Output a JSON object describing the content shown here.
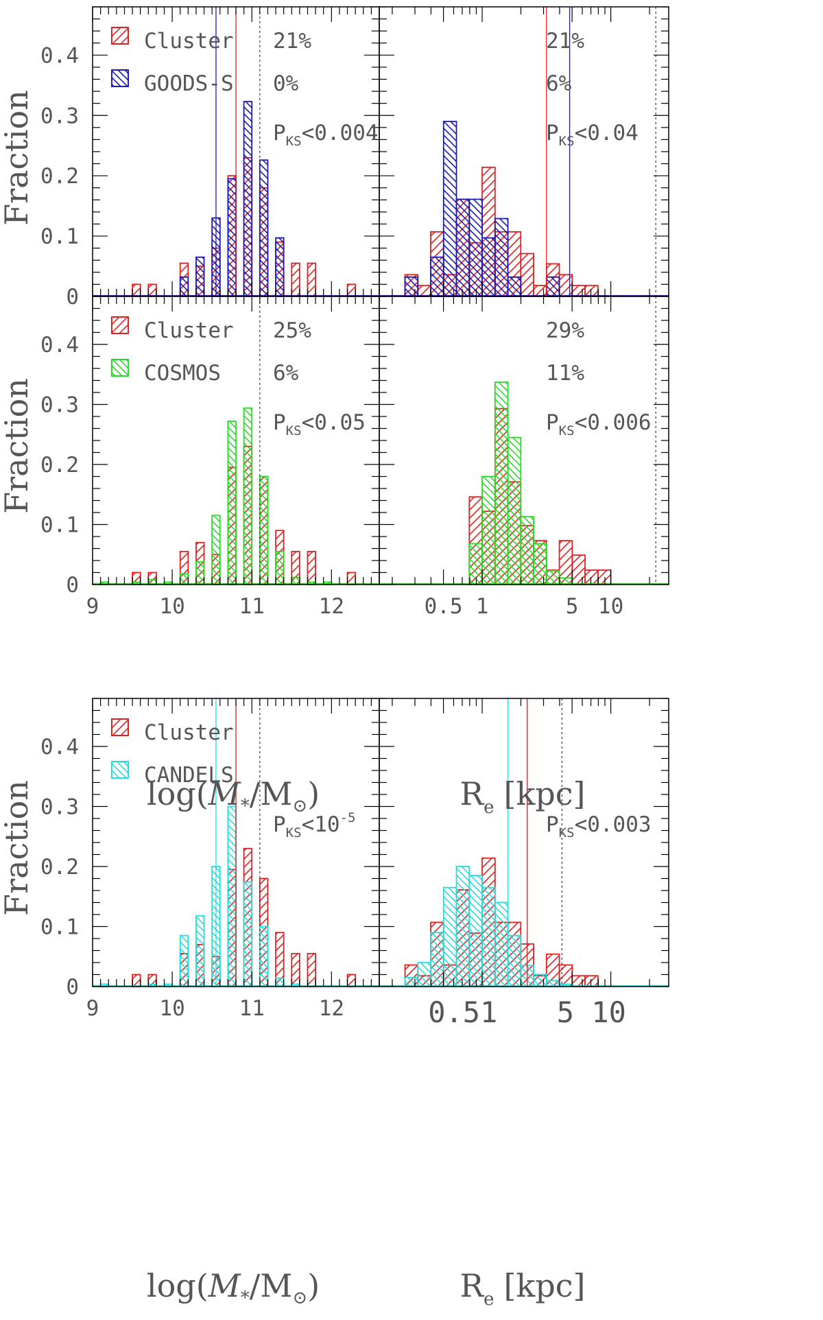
{
  "colors": {
    "cluster": "#dd2222",
    "goods_s": "#1a1ab8",
    "cosmos": "#22dd22",
    "candels": "#22dddd",
    "axis": "#000000",
    "text": "#555555"
  },
  "chart_data": [
    {
      "type": "histogram",
      "panel": "top-mass",
      "xlim": [
        9.0,
        12.6
      ],
      "ylim": [
        0,
        0.48
      ],
      "yticks": [
        0,
        0.1,
        0.2,
        0.3,
        0.4
      ],
      "xscale": "linear",
      "ylabel": "Fraction",
      "bin_edges": [
        9.0,
        9.1,
        9.2,
        9.3,
        9.4,
        9.5,
        9.6,
        9.7,
        9.8,
        9.9,
        10.0,
        10.1,
        10.2,
        10.3,
        10.4,
        10.5,
        10.6,
        10.7,
        10.8,
        10.9,
        11.0,
        11.1,
        11.2,
        11.3,
        11.4,
        11.5,
        11.6,
        11.7,
        11.8,
        11.9,
        12.0,
        12.1,
        12.2,
        12.3,
        12.4,
        12.5,
        12.6
      ],
      "series": [
        {
          "name": "Cluster",
          "color": "cluster",
          "hatch": "right",
          "values": [
            0,
            0,
            0,
            0,
            0,
            0.02,
            0,
            0.02,
            0,
            0,
            0,
            0.055,
            0,
            0.05,
            0,
            0.08,
            0,
            0.2,
            0,
            0.23,
            0,
            0.18,
            0,
            0.09,
            0,
            0.055,
            0,
            0.055,
            0,
            0,
            0,
            0,
            0.02,
            0,
            0,
            0
          ]
        },
        {
          "name": "GOODS-S",
          "color": "goods_s",
          "hatch": "left",
          "values": [
            0,
            0,
            0,
            0,
            0,
            0,
            0,
            0,
            0,
            0,
            0,
            0.032,
            0,
            0.065,
            0,
            0.13,
            0,
            0.195,
            0,
            0.323,
            0,
            0.226,
            0,
            0.097,
            0,
            0,
            0,
            0,
            0,
            0,
            0,
            0,
            0,
            0,
            0,
            0
          ]
        }
      ],
      "medians": [
        {
          "series": "Cluster",
          "x": 10.8
        },
        {
          "series": "GOODS-S",
          "x": 10.55
        }
      ],
      "threshold": 11.1,
      "legend": [
        {
          "label": "Cluster",
          "color": "cluster",
          "hatch": "right"
        },
        {
          "label": "GOODS-S",
          "color": "goods_s",
          "hatch": "left"
        }
      ],
      "annotations": {
        "pct1": "21%",
        "pct2": "0%",
        "pks_value": "<0.004"
      }
    },
    {
      "type": "histogram",
      "panel": "top-size",
      "xlim": [
        -0.8,
        1.45
      ],
      "ylim": [
        0,
        0.48
      ],
      "xscale": "log10_kpc",
      "bin_edges": [
        -0.7,
        -0.6,
        -0.5,
        -0.4,
        -0.3,
        -0.2,
        -0.1,
        0.0,
        0.1,
        0.2,
        0.3,
        0.4,
        0.5,
        0.6,
        0.7,
        0.8,
        0.9,
        1.0,
        1.1,
        1.2,
        1.3
      ],
      "series": [
        {
          "name": "Cluster",
          "color": "cluster",
          "hatch": "right",
          "values": [
            0,
            0.036,
            0.018,
            0.107,
            0.036,
            0.161,
            0.089,
            0.214,
            0.107,
            0.107,
            0.071,
            0.018,
            0.054,
            0.036,
            0.018,
            0.018,
            0,
            0,
            0,
            0
          ]
        },
        {
          "name": "GOODS-S",
          "color": "goods_s",
          "hatch": "left",
          "values": [
            0,
            0.032,
            0,
            0.065,
            0.29,
            0.161,
            0.161,
            0.097,
            0.129,
            0.032,
            0,
            0,
            0.032,
            0,
            0,
            0,
            0,
            0,
            0,
            0
          ]
        }
      ],
      "medians": [
        {
          "series": "Cluster",
          "x": 0.5
        },
        {
          "series": "GOODS-S",
          "x": 0.68
        }
      ],
      "threshold": 1.35,
      "annotations": {
        "pct1": "21%",
        "pct2": "6%",
        "pks_value": "<0.04"
      }
    },
    {
      "type": "histogram",
      "panel": "mid-mass",
      "xlim": [
        9.0,
        12.6
      ],
      "ylim": [
        0,
        0.48
      ],
      "yticks": [
        0,
        0.1,
        0.2,
        0.3,
        0.4
      ],
      "xscale": "linear",
      "ylabel": "Fraction",
      "xlabel": "log(M*/M☉)",
      "xticks": [
        9,
        10,
        11,
        12
      ],
      "bin_edges": [
        9.0,
        9.1,
        9.2,
        9.3,
        9.4,
        9.5,
        9.6,
        9.7,
        9.8,
        9.9,
        10.0,
        10.1,
        10.2,
        10.3,
        10.4,
        10.5,
        10.6,
        10.7,
        10.8,
        10.9,
        11.0,
        11.1,
        11.2,
        11.3,
        11.4,
        11.5,
        11.6,
        11.7,
        11.8,
        11.9,
        12.0,
        12.1,
        12.2,
        12.3,
        12.4,
        12.5,
        12.6
      ],
      "series": [
        {
          "name": "Cluster",
          "color": "cluster",
          "hatch": "right",
          "values": [
            0,
            0,
            0,
            0,
            0,
            0.02,
            0,
            0.02,
            0,
            0,
            0,
            0.055,
            0,
            0.07,
            0,
            0.05,
            0,
            0.195,
            0,
            0.23,
            0,
            0.18,
            0,
            0.09,
            0,
            0.055,
            0,
            0.055,
            0,
            0,
            0,
            0,
            0.02,
            0,
            0,
            0
          ]
        },
        {
          "name": "COSMOS",
          "color": "cosmos",
          "hatch": "left",
          "values": [
            0,
            0.004,
            0,
            0,
            0,
            0.004,
            0,
            0.008,
            0,
            0.004,
            0,
            0.018,
            0,
            0.038,
            0,
            0.115,
            0,
            0.272,
            0,
            0.294,
            0,
            0.18,
            0,
            0.055,
            0,
            0.012,
            0,
            0.004,
            0,
            0.004,
            0,
            0,
            0,
            0,
            0,
            0
          ]
        }
      ],
      "threshold": 11.1,
      "legend": [
        {
          "label": "Cluster",
          "color": "cluster",
          "hatch": "right"
        },
        {
          "label": "COSMOS",
          "color": "cosmos",
          "hatch": "left"
        }
      ],
      "annotations": {
        "pct1": "25%",
        "pct2": "6%",
        "pks_value": "<0.05"
      }
    },
    {
      "type": "histogram",
      "panel": "mid-size",
      "xlim": [
        -0.8,
        1.45
      ],
      "ylim": [
        0,
        0.48
      ],
      "xscale": "log10_kpc",
      "xlabel": "R_e [kpc]",
      "xticks": [
        "0.5",
        "1",
        "5",
        "10"
      ],
      "bin_edges": [
        -0.7,
        -0.6,
        -0.5,
        -0.4,
        -0.3,
        -0.2,
        -0.1,
        0.0,
        0.1,
        0.2,
        0.3,
        0.4,
        0.5,
        0.6,
        0.7,
        0.8,
        0.9,
        1.0,
        1.1,
        1.2,
        1.3
      ],
      "series": [
        {
          "name": "Cluster",
          "color": "cluster",
          "hatch": "right",
          "values": [
            0,
            0,
            0,
            0,
            0,
            0,
            0.146,
            0.122,
            0.293,
            0.171,
            0.098,
            0.073,
            0.024,
            0.073,
            0.049,
            0.024,
            0.024,
            0,
            0,
            0
          ]
        },
        {
          "name": "COSMOS",
          "color": "cosmos",
          "hatch": "left",
          "values": [
            0,
            0,
            0,
            0,
            0,
            0,
            0.068,
            0.18,
            0.337,
            0.245,
            0.113,
            0.068,
            0.023,
            0.011,
            0,
            0,
            0,
            0,
            0,
            0
          ]
        }
      ],
      "threshold": 1.35,
      "annotations": {
        "pct1": "29%",
        "pct2": "11%",
        "pks_value": "<0.006"
      }
    },
    {
      "type": "histogram",
      "panel": "bottom-mass",
      "xlim": [
        9.0,
        12.6
      ],
      "ylim": [
        0,
        0.48
      ],
      "yticks": [
        0,
        0.1,
        0.2,
        0.3,
        0.4
      ],
      "xscale": "linear",
      "ylabel": "Fraction",
      "xlabel": "log(M*/M☉)",
      "xticks": [
        9,
        10,
        11,
        12
      ],
      "bin_edges": [
        9.0,
        9.1,
        9.2,
        9.3,
        9.4,
        9.5,
        9.6,
        9.7,
        9.8,
        9.9,
        10.0,
        10.1,
        10.2,
        10.3,
        10.4,
        10.5,
        10.6,
        10.7,
        10.8,
        10.9,
        11.0,
        11.1,
        11.2,
        11.3,
        11.4,
        11.5,
        11.6,
        11.7,
        11.8,
        11.9,
        12.0,
        12.1,
        12.2,
        12.3,
        12.4,
        12.5,
        12.6
      ],
      "series": [
        {
          "name": "Cluster",
          "color": "cluster",
          "hatch": "right",
          "values": [
            0,
            0,
            0,
            0,
            0,
            0.02,
            0,
            0.02,
            0,
            0,
            0,
            0.055,
            0,
            0.07,
            0,
            0.05,
            0,
            0.195,
            0,
            0.23,
            0,
            0.18,
            0,
            0.09,
            0,
            0.055,
            0,
            0.055,
            0,
            0,
            0,
            0,
            0.02,
            0,
            0,
            0
          ]
        },
        {
          "name": "CANDELS",
          "color": "candels",
          "hatch": "left",
          "values": [
            0,
            0.004,
            0,
            0,
            0,
            0,
            0,
            0.004,
            0,
            0.004,
            0,
            0.085,
            0,
            0.118,
            0,
            0.2,
            0,
            0.3,
            0,
            0.174,
            0,
            0.1,
            0,
            0.014,
            0,
            0.004,
            0,
            0,
            0,
            0,
            0,
            0,
            0,
            0,
            0,
            0
          ]
        }
      ],
      "medians": [
        {
          "series": "Cluster",
          "x": 10.8
        },
        {
          "series": "CANDELS",
          "x": 10.55
        }
      ],
      "threshold": 11.1,
      "legend": [
        {
          "label": "Cluster",
          "color": "cluster",
          "hatch": "right"
        },
        {
          "label": "CANDELS",
          "color": "candels",
          "hatch": "left"
        }
      ],
      "annotations": {
        "pks_value": "<10",
        "pks_exponent": "-5"
      }
    },
    {
      "type": "histogram",
      "panel": "bottom-size",
      "xlim": [
        -0.8,
        1.45
      ],
      "ylim": [
        0,
        0.48
      ],
      "xscale": "log10_kpc",
      "xlabel": "R_e [kpc]",
      "xticks": [
        "0.51",
        "5 10"
      ],
      "bin_edges": [
        -0.7,
        -0.6,
        -0.5,
        -0.4,
        -0.3,
        -0.2,
        -0.1,
        0.0,
        0.1,
        0.2,
        0.3,
        0.4,
        0.5,
        0.6,
        0.7,
        0.8,
        0.9,
        1.0,
        1.1,
        1.2,
        1.3
      ],
      "series": [
        {
          "name": "Cluster",
          "color": "cluster",
          "hatch": "right",
          "values": [
            0,
            0.036,
            0.018,
            0.107,
            0.036,
            0.161,
            0.089,
            0.214,
            0.107,
            0.107,
            0.071,
            0.018,
            0.054,
            0.036,
            0.018,
            0.018,
            0,
            0,
            0,
            0
          ]
        },
        {
          "name": "CANDELS",
          "color": "candels",
          "hatch": "left",
          "values": [
            0,
            0.015,
            0.04,
            0.09,
            0.165,
            0.2,
            0.185,
            0.165,
            0.14,
            0.085,
            0.035,
            0.02,
            0.01,
            0.004,
            0,
            0,
            0,
            0,
            0,
            0
          ]
        }
      ],
      "medians": [
        {
          "series": "Cluster",
          "x": 0.35
        },
        {
          "series": "CANDELS",
          "x": 0.2
        }
      ],
      "threshold": 0.62,
      "annotations": {
        "pks_value": "<0.003"
      }
    }
  ],
  "labels": {
    "fraction": "Fraction",
    "log_prefix": "log(",
    "mass_symbol": "M",
    "star": "*",
    "slash_m": "/M",
    "sun": "⊙",
    "close_paren": ")",
    "re_r": "R",
    "re_e": "e",
    "re_unit": "[kpc]",
    "pks_p": "P",
    "pks_sub": "KS"
  }
}
